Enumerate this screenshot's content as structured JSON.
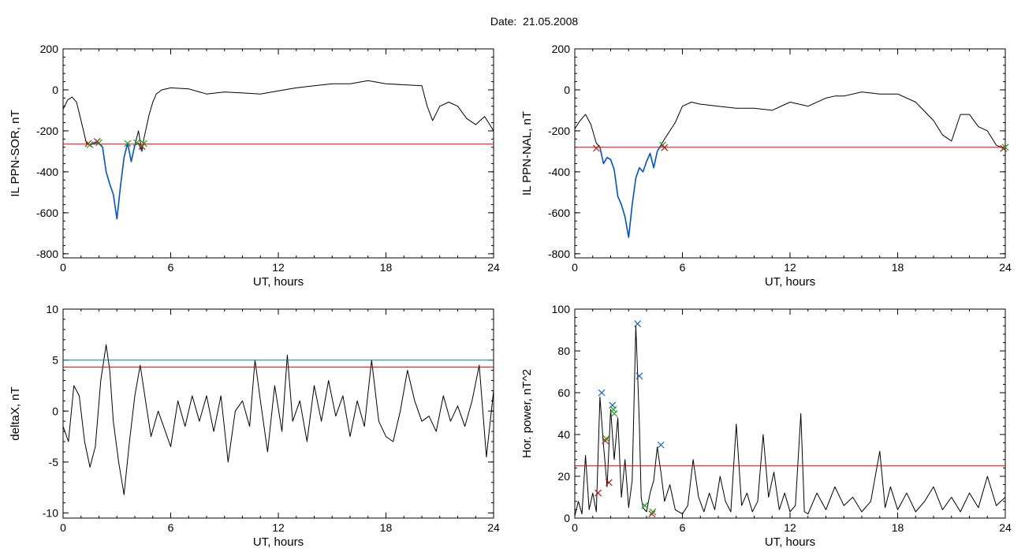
{
  "page": {
    "title_label": "Date:",
    "title_value": "21.05.2008"
  },
  "colors": {
    "trace": "#000000",
    "blue": "#0050e0",
    "threshold_red": "#e00000",
    "threshold_teal": "#008c8c",
    "marker_red": "#d01010",
    "marker_green": "#20a020",
    "marker_blue": "#1060d0"
  },
  "chart_data": [
    {
      "id": "sor",
      "type": "line",
      "xlabel": "UT, hours",
      "ylabel": "IL PPN-SOR, nT",
      "xlim": [
        0,
        24
      ],
      "ylim": [
        -820,
        200
      ],
      "xticks": [
        0,
        6,
        12,
        18,
        24
      ],
      "yticks": [
        -800,
        -600,
        -400,
        -200,
        0,
        200
      ],
      "threshold": {
        "value": -265,
        "color": "red"
      },
      "series": [
        {
          "color": "black",
          "x": [
            0,
            0.25,
            0.5,
            0.75,
            1.0,
            1.3,
            1.5,
            1.8,
            2.0,
            2.2,
            2.4,
            2.6,
            2.8,
            3.0,
            3.2,
            3.4,
            3.6,
            3.8,
            4.0,
            4.2,
            4.4,
            4.5,
            4.8,
            5.0,
            5.2,
            5.5,
            6.0,
            7.0,
            8.0,
            9.0,
            10.0,
            11.0,
            12.0,
            13.0,
            14.0,
            15.0,
            16.0,
            17.0,
            18.0,
            19.0,
            20.0,
            20.3,
            20.6,
            21.0,
            21.5,
            22.0,
            22.5,
            23.0,
            23.5,
            24.0
          ],
          "y": [
            -95,
            -50,
            -35,
            -60,
            -150,
            -260,
            -270,
            -255,
            -262,
            -280,
            -400,
            -460,
            -510,
            -630,
            -470,
            -330,
            -260,
            -350,
            -270,
            -200,
            -300,
            -240,
            -120,
            -60,
            -20,
            0,
            10,
            5,
            -20,
            -10,
            -15,
            -20,
            -5,
            10,
            20,
            30,
            30,
            45,
            30,
            25,
            20,
            -80,
            -150,
            -80,
            -60,
            -80,
            -140,
            -170,
            -130,
            -200
          ]
        },
        {
          "color": "blue",
          "x": [
            1.5,
            1.8,
            2.0,
            2.2,
            2.4,
            2.6,
            2.8,
            3.0,
            3.2,
            3.4,
            3.6,
            3.8,
            4.0,
            4.2,
            4.4
          ],
          "y": [
            -270,
            -255,
            -262,
            -280,
            -400,
            -460,
            -510,
            -630,
            -470,
            -330,
            -260,
            -350,
            -270,
            -260,
            -300
          ]
        }
      ],
      "markers": [
        {
          "x": 1.4,
          "y": -262,
          "color": "red"
        },
        {
          "x": 1.5,
          "y": -268,
          "color": "green"
        },
        {
          "x": 1.9,
          "y": -252,
          "color": "red"
        },
        {
          "x": 2.0,
          "y": -258,
          "color": "green"
        },
        {
          "x": 3.6,
          "y": -262,
          "color": "green"
        },
        {
          "x": 4.1,
          "y": -258,
          "color": "green"
        },
        {
          "x": 4.4,
          "y": -276,
          "color": "red"
        },
        {
          "x": 4.5,
          "y": -262,
          "color": "green"
        }
      ]
    },
    {
      "id": "nal",
      "type": "line",
      "xlabel": "UT, hours",
      "ylabel": "IL PPN-NAL, nT",
      "xlim": [
        0,
        24
      ],
      "ylim": [
        -820,
        200
      ],
      "xticks": [
        0,
        6,
        12,
        18,
        24
      ],
      "yticks": [
        -800,
        -600,
        -400,
        -200,
        0,
        200
      ],
      "threshold": {
        "value": -280,
        "color": "red"
      },
      "series": [
        {
          "color": "black",
          "x": [
            0,
            0.3,
            0.6,
            0.9,
            1.2,
            1.4,
            1.6,
            1.8,
            2.0,
            2.2,
            2.4,
            2.6,
            2.8,
            3.0,
            3.2,
            3.4,
            3.6,
            3.8,
            4.0,
            4.2,
            4.4,
            4.6,
            4.8,
            5.0,
            5.3,
            5.6,
            6.0,
            6.5,
            7.0,
            8.0,
            9.0,
            10.0,
            11.0,
            12.0,
            13.0,
            14.0,
            14.5,
            15.0,
            16.0,
            17.0,
            18.0,
            19.0,
            20.0,
            20.5,
            21.0,
            21.5,
            22.0,
            22.5,
            23.0,
            23.5,
            24.0
          ],
          "y": [
            -190,
            -150,
            -120,
            -170,
            -260,
            -280,
            -360,
            -330,
            -340,
            -390,
            -520,
            -560,
            -620,
            -720,
            -560,
            -430,
            -380,
            -400,
            -350,
            -310,
            -380,
            -300,
            -270,
            -240,
            -200,
            -160,
            -80,
            -60,
            -70,
            -80,
            -90,
            -90,
            -100,
            -60,
            -80,
            -40,
            -30,
            -30,
            -10,
            -20,
            -20,
            -60,
            -150,
            -220,
            -250,
            -120,
            -120,
            -180,
            -200,
            -270,
            -290
          ]
        },
        {
          "color": "blue",
          "x": [
            1.4,
            1.6,
            1.8,
            2.0,
            2.2,
            2.4,
            2.6,
            2.8,
            3.0,
            3.2,
            3.4,
            3.6,
            3.8,
            4.0,
            4.2,
            4.4,
            4.6,
            4.8
          ],
          "y": [
            -280,
            -360,
            -330,
            -340,
            -390,
            -520,
            -560,
            -620,
            -720,
            -560,
            -430,
            -380,
            -400,
            -350,
            -310,
            -380,
            -300,
            -270
          ]
        }
      ],
      "markers": [
        {
          "x": 1.2,
          "y": -285,
          "color": "red"
        },
        {
          "x": 4.9,
          "y": -270,
          "color": "green"
        },
        {
          "x": 5.0,
          "y": -282,
          "color": "red"
        },
        {
          "x": 23.9,
          "y": -286,
          "color": "red"
        },
        {
          "x": 24.0,
          "y": -280,
          "color": "green"
        }
      ]
    },
    {
      "id": "deltax",
      "type": "line",
      "xlabel": "UT, hours",
      "ylabel": "deltaX, nT",
      "xlim": [
        0,
        24
      ],
      "ylim": [
        -10.5,
        10
      ],
      "xticks": [
        0,
        6,
        12,
        18,
        24
      ],
      "yticks": [
        -10,
        -5,
        0,
        5,
        10
      ],
      "thresholds": [
        {
          "value": 5.0,
          "color": "teal"
        },
        {
          "value": 4.3,
          "color": "red"
        }
      ],
      "series": [
        {
          "color": "black",
          "x": [
            0,
            0.3,
            0.6,
            0.9,
            1.2,
            1.5,
            1.8,
            2.1,
            2.4,
            2.6,
            2.8,
            3.1,
            3.4,
            3.7,
            4.0,
            4.3,
            4.6,
            4.9,
            5.3,
            5.7,
            6.0,
            6.4,
            6.8,
            7.2,
            7.6,
            8.0,
            8.4,
            8.8,
            9.2,
            9.6,
            10.0,
            10.4,
            10.7,
            11.0,
            11.4,
            11.8,
            12.2,
            12.5,
            12.8,
            13.2,
            13.6,
            14.0,
            14.4,
            14.8,
            15.2,
            15.6,
            16.0,
            16.4,
            16.8,
            17.2,
            17.6,
            18.0,
            18.4,
            18.8,
            19.2,
            19.6,
            20.0,
            20.4,
            20.8,
            21.2,
            21.6,
            22.0,
            22.4,
            22.8,
            23.2,
            23.6,
            24.0
          ],
          "y": [
            -1.5,
            -3,
            2.5,
            1.5,
            -3,
            -5.5,
            -3.5,
            3,
            6.5,
            4,
            -1,
            -5,
            -8.2,
            -3,
            1.5,
            4.5,
            1,
            -2.5,
            0,
            -2,
            -3.5,
            1,
            -1.5,
            1.5,
            -1,
            1.5,
            -2,
            1.5,
            -5,
            0,
            1,
            -1.5,
            5,
            1,
            -4,
            2.5,
            -2,
            5.5,
            -1,
            1,
            -3,
            2.5,
            -1,
            3,
            -0.5,
            1.5,
            -2.5,
            1,
            -1.5,
            5,
            -1,
            -2.5,
            -3,
            0,
            4,
            1,
            -1,
            -0.5,
            -2,
            1.5,
            -1,
            0.5,
            -1.5,
            1,
            4.5,
            -4.5,
            2
          ]
        }
      ],
      "markers": []
    },
    {
      "id": "hpower",
      "type": "line",
      "xlabel": "UT, hours",
      "ylabel": "Hor. power, nT^2",
      "xlim": [
        0,
        24
      ],
      "ylim": [
        0,
        100
      ],
      "xticks": [
        0,
        6,
        12,
        18,
        24
      ],
      "yticks": [
        0,
        20,
        40,
        60,
        80,
        100
      ],
      "threshold": {
        "value": 25,
        "color": "red"
      },
      "series": [
        {
          "color": "black",
          "x": [
            0,
            0.2,
            0.4,
            0.6,
            0.8,
            1.0,
            1.2,
            1.4,
            1.6,
            1.8,
            2.0,
            2.2,
            2.4,
            2.6,
            2.8,
            3.0,
            3.2,
            3.4,
            3.5,
            3.6,
            3.7,
            3.8,
            4.0,
            4.2,
            4.4,
            4.6,
            4.8,
            5.0,
            5.3,
            5.6,
            6.0,
            6.3,
            6.6,
            6.9,
            7.2,
            7.5,
            7.8,
            8.1,
            8.4,
            8.7,
            9.0,
            9.3,
            9.6,
            9.9,
            10.2,
            10.5,
            10.8,
            11.1,
            11.4,
            11.7,
            12.0,
            12.3,
            12.6,
            12.8,
            13.0,
            13.5,
            14.0,
            14.5,
            15.0,
            15.5,
            16.0,
            16.5,
            17.0,
            17.3,
            17.6,
            18.0,
            18.5,
            19.0,
            19.5,
            20.0,
            20.5,
            21.0,
            21.5,
            22.0,
            22.5,
            23.0,
            23.5,
            24.0
          ],
          "y": [
            1,
            8,
            2,
            30,
            4,
            12,
            3,
            58,
            35,
            15,
            52,
            28,
            48,
            10,
            28,
            5,
            18,
            92,
            70,
            45,
            10,
            5,
            3,
            12,
            18,
            34,
            22,
            8,
            16,
            4,
            2,
            6,
            28,
            10,
            3,
            12,
            4,
            20,
            8,
            3,
            45,
            6,
            12,
            3,
            8,
            40,
            10,
            22,
            4,
            12,
            3,
            6,
            50,
            3,
            2,
            12,
            4,
            15,
            6,
            10,
            3,
            8,
            32,
            5,
            15,
            4,
            12,
            3,
            8,
            15,
            4,
            10,
            3,
            12,
            5,
            20,
            6,
            10
          ]
        }
      ],
      "markers": [
        {
          "x": 1.3,
          "y": 12,
          "color": "red"
        },
        {
          "x": 1.5,
          "y": 60,
          "color": "blue"
        },
        {
          "x": 1.7,
          "y": 37,
          "color": "red"
        },
        {
          "x": 1.75,
          "y": 38,
          "color": "green"
        },
        {
          "x": 1.9,
          "y": 17,
          "color": "red"
        },
        {
          "x": 2.1,
          "y": 54,
          "color": "blue"
        },
        {
          "x": 2.15,
          "y": 52,
          "color": "green"
        },
        {
          "x": 2.2,
          "y": 50,
          "color": "green"
        },
        {
          "x": 3.5,
          "y": 93,
          "color": "blue"
        },
        {
          "x": 3.6,
          "y": 68,
          "color": "blue"
        },
        {
          "x": 3.9,
          "y": 6,
          "color": "green"
        },
        {
          "x": 4.3,
          "y": 2,
          "color": "red"
        },
        {
          "x": 4.35,
          "y": 3,
          "color": "green"
        },
        {
          "x": 4.8,
          "y": 35,
          "color": "blue"
        }
      ]
    }
  ]
}
